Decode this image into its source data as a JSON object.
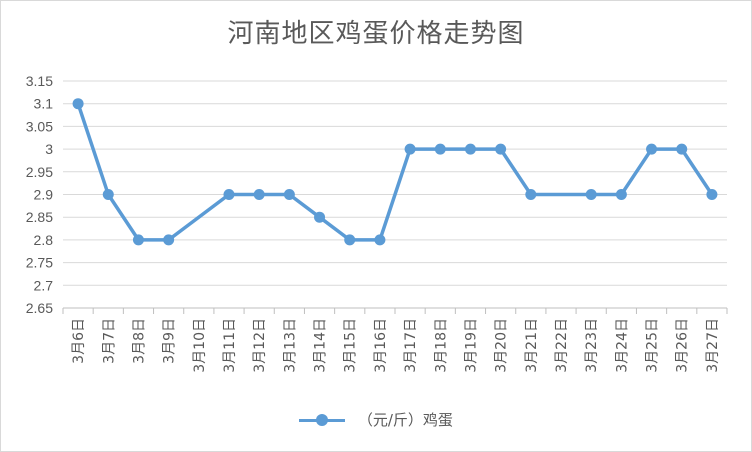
{
  "chart_data": {
    "type": "line",
    "title": "河南地区鸡蛋价格走势图",
    "categories": [
      "3月6日",
      "3月7日",
      "3月8日",
      "3月9日",
      "3月10日",
      "3月11日",
      "3月12日",
      "3月13日",
      "3月14日",
      "3月15日",
      "3月16日",
      "3月17日",
      "3月18日",
      "3月19日",
      "3月20日",
      "3月21日",
      "3月22日",
      "3月23日",
      "3月24日",
      "3月25日",
      "3月26日",
      "3月27日"
    ],
    "series": [
      {
        "name": "（元/斤）鸡蛋",
        "values": [
          3.1,
          2.9,
          2.8,
          2.8,
          null,
          2.9,
          2.9,
          2.9,
          2.85,
          2.8,
          2.8,
          3.0,
          3.0,
          3.0,
          3.0,
          2.9,
          null,
          2.9,
          2.9,
          3.0,
          3.0,
          2.9
        ]
      }
    ],
    "ylim": [
      2.65,
      3.15
    ],
    "yticks": [
      "3.15",
      "3.1",
      "3.05",
      "3",
      "2.95",
      "2.9",
      "2.85",
      "2.8",
      "2.75",
      "2.7",
      "2.65"
    ],
    "grid": true,
    "legend_position": "bottom",
    "line_color": "#5b9bd5",
    "gaps": "span"
  }
}
